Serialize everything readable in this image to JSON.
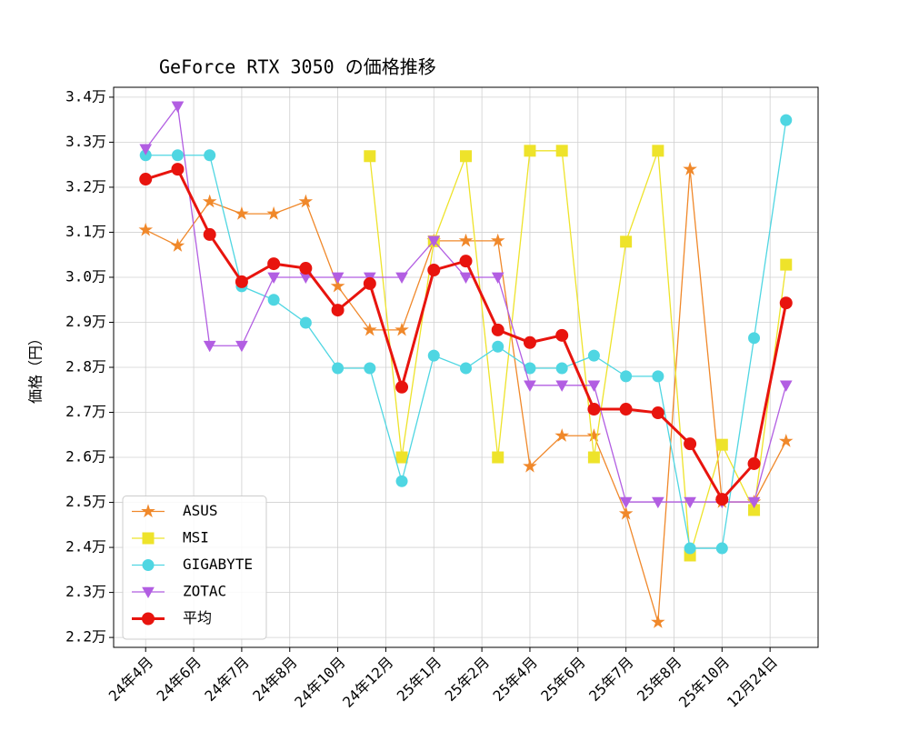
{
  "chart_data": {
    "type": "line",
    "title": "GeForce RTX 3050 の価格推移",
    "y_label": "価格（円）",
    "x": [
      0,
      1,
      2,
      3,
      4,
      5,
      6,
      7,
      8,
      9,
      10,
      11,
      12,
      13,
      14,
      15,
      16,
      17,
      18,
      19,
      20
    ],
    "xlim": [
      -1,
      21
    ],
    "xticks": [
      {
        "value": 0,
        "label": "24年4月"
      },
      {
        "value": 1.5,
        "label": "24年6月"
      },
      {
        "value": 3,
        "label": "24年7月"
      },
      {
        "value": 4.5,
        "label": "24年8月"
      },
      {
        "value": 6,
        "label": "24年10月"
      },
      {
        "value": 7.5,
        "label": "24年12月"
      },
      {
        "value": 9,
        "label": "25年1月"
      },
      {
        "value": 10.5,
        "label": "25年2月"
      },
      {
        "value": 12,
        "label": "25年4月"
      },
      {
        "value": 13.5,
        "label": "25年6月"
      },
      {
        "value": 15,
        "label": "25年7月"
      },
      {
        "value": 16.5,
        "label": "25年8月"
      },
      {
        "value": 18,
        "label": "25年10月"
      },
      {
        "value": 19.5,
        "label": "12月24日"
      }
    ],
    "ylim": [
      21780,
      34220
    ],
    "yticks": [
      {
        "value": 22000,
        "label": "2.2万"
      },
      {
        "value": 23000,
        "label": "2.3万"
      },
      {
        "value": 24000,
        "label": "2.4万"
      },
      {
        "value": 25000,
        "label": "2.5万"
      },
      {
        "value": 26000,
        "label": "2.6万"
      },
      {
        "value": 27000,
        "label": "2.7万"
      },
      {
        "value": 28000,
        "label": "2.8万"
      },
      {
        "value": 29000,
        "label": "2.9万"
      },
      {
        "value": 30000,
        "label": "3.0万"
      },
      {
        "value": 31000,
        "label": "3.1万"
      },
      {
        "value": 32000,
        "label": "3.2万"
      },
      {
        "value": 33000,
        "label": "3.3万"
      },
      {
        "value": 34000,
        "label": "3.4万"
      }
    ],
    "grid": true,
    "legend": "lower left",
    "series": [
      {
        "name": "ASUS",
        "color": "#f0882a",
        "marker": "star",
        "linewidth": 1.3,
        "values": [
          31050,
          30700,
          31680,
          31410,
          31410,
          31680,
          29800,
          28830,
          28830,
          30810,
          30810,
          30810,
          25800,
          26480,
          26480,
          24750,
          22340,
          32400,
          25010,
          25010,
          26360
        ]
      },
      {
        "name": "MSI",
        "color": "#eee32a",
        "marker": "square",
        "linewidth": 1.3,
        "values": [
          null,
          null,
          null,
          null,
          null,
          null,
          null,
          32690,
          26000,
          30800,
          32690,
          26000,
          32810,
          32810,
          26000,
          30790,
          32810,
          23820,
          26280,
          24830,
          30280
        ]
      },
      {
        "name": "GIGABYTE",
        "color": "#4fd6e2",
        "marker": "circle",
        "linewidth": 1.3,
        "values": [
          32710,
          32710,
          32710,
          29800,
          29500,
          28990,
          27980,
          27980,
          25470,
          28260,
          27980,
          28460,
          27980,
          27980,
          28260,
          27800,
          27800,
          23980,
          23980,
          28650,
          33490
        ]
      },
      {
        "name": "ZOTAC",
        "color": "#b25ee2",
        "marker": "triangle-down",
        "linewidth": 1.3,
        "values": [
          32850,
          33800,
          28480,
          28480,
          30000,
          30000,
          30000,
          30000,
          30000,
          30810,
          30000,
          30000,
          27600,
          27600,
          27600,
          25010,
          25010,
          25010,
          25010,
          25010,
          27600
        ]
      },
      {
        "name": "平均",
        "color": "#e8140e",
        "marker": "circle",
        "linewidth": 3,
        "values": [
          32180,
          32400,
          30950,
          29900,
          30300,
          30200,
          29270,
          29860,
          27560,
          30160,
          30360,
          28830,
          28550,
          28710,
          27070,
          27070,
          26990,
          26300,
          25070,
          25860,
          29430
        ]
      }
    ]
  }
}
